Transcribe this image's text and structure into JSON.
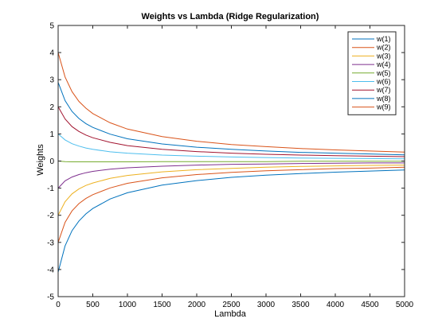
{
  "chart_data": {
    "type": "line",
    "title": "Weights vs Lambda (Ridge Regularization)",
    "xlabel": "Lambda",
    "ylabel": "Weights",
    "xlim": [
      0,
      5000
    ],
    "ylim": [
      -5,
      5
    ],
    "xticks": [
      "0",
      "500",
      "1000",
      "1500",
      "2000",
      "2500",
      "3000",
      "3500",
      "4000",
      "4500",
      "5000"
    ],
    "yticks": [
      "-5",
      "-4",
      "-3",
      "-2",
      "-1",
      "0",
      "1",
      "2",
      "3",
      "4",
      "5"
    ],
    "grid": false,
    "legend_position": "top-right",
    "x": [
      0,
      100,
      200,
      300,
      400,
      500,
      750,
      1000,
      1500,
      2000,
      2500,
      3000,
      3500,
      4000,
      4500,
      5000
    ],
    "series": [
      {
        "name": "w(1)",
        "color": "#0072BD",
        "values": [
          -4.1,
          -3.13,
          -2.57,
          -2.21,
          -1.95,
          -1.75,
          -1.4,
          -1.17,
          -0.89,
          -0.72,
          -0.6,
          -0.52,
          -0.46,
          -0.41,
          -0.37,
          -0.33
        ]
      },
      {
        "name": "w(2)",
        "color": "#D95319",
        "values": [
          -3.0,
          -2.26,
          -1.84,
          -1.57,
          -1.38,
          -1.24,
          -0.99,
          -0.82,
          -0.62,
          -0.5,
          -0.42,
          -0.36,
          -0.32,
          -0.28,
          -0.26,
          -0.23
        ]
      },
      {
        "name": "w(3)",
        "color": "#EDB120",
        "values": [
          -2.0,
          -1.5,
          -1.21,
          -1.03,
          -0.9,
          -0.81,
          -0.64,
          -0.53,
          -0.4,
          -0.32,
          -0.27,
          -0.23,
          -0.2,
          -0.18,
          -0.16,
          -0.15
        ]
      },
      {
        "name": "w(4)",
        "color": "#7E2F8E",
        "values": [
          -1.0,
          -0.73,
          -0.59,
          -0.5,
          -0.43,
          -0.38,
          -0.3,
          -0.25,
          -0.19,
          -0.15,
          -0.12,
          -0.11,
          -0.09,
          -0.08,
          -0.07,
          -0.07
        ]
      },
      {
        "name": "w(5)",
        "color": "#77AC30",
        "values": [
          0.0,
          -0.02,
          -0.03,
          -0.03,
          -0.03,
          -0.03,
          -0.03,
          -0.03,
          -0.02,
          -0.02,
          -0.02,
          -0.02,
          -0.01,
          -0.01,
          -0.01,
          -0.01
        ]
      },
      {
        "name": "w(6)",
        "color": "#4DBEEE",
        "values": [
          1.0,
          0.78,
          0.64,
          0.55,
          0.48,
          0.43,
          0.34,
          0.29,
          0.22,
          0.18,
          0.15,
          0.13,
          0.11,
          0.1,
          0.09,
          0.08
        ]
      },
      {
        "name": "w(7)",
        "color": "#A2142F",
        "values": [
          2.0,
          1.55,
          1.27,
          1.09,
          0.96,
          0.86,
          0.69,
          0.57,
          0.43,
          0.35,
          0.29,
          0.25,
          0.22,
          0.2,
          0.18,
          0.16
        ]
      },
      {
        "name": "w(8)",
        "color": "#0072BD",
        "values": [
          2.9,
          2.23,
          1.83,
          1.57,
          1.38,
          1.24,
          0.99,
          0.82,
          0.63,
          0.51,
          0.43,
          0.37,
          0.32,
          0.29,
          0.26,
          0.23
        ]
      },
      {
        "name": "w(9)",
        "color": "#D95319",
        "values": [
          4.0,
          3.1,
          2.56,
          2.2,
          1.95,
          1.75,
          1.41,
          1.18,
          0.9,
          0.73,
          0.61,
          0.53,
          0.46,
          0.41,
          0.37,
          0.33
        ]
      }
    ]
  }
}
